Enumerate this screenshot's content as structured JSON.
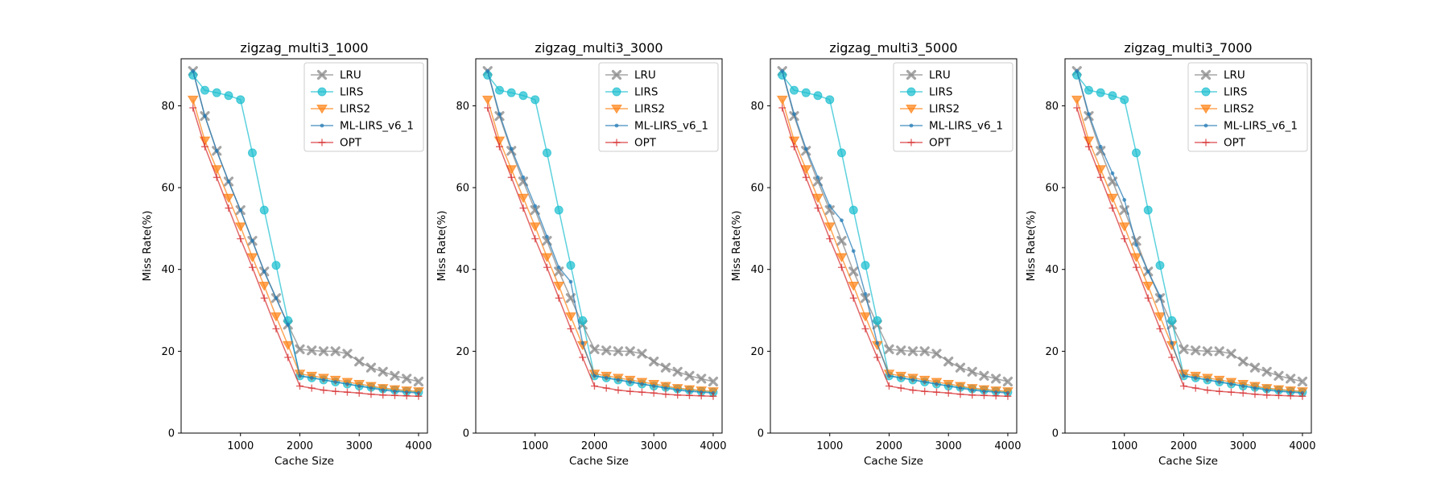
{
  "chart_data": [
    {
      "type": "line",
      "title": "zigzag_multi3_1000",
      "xlabel": "Cache Size",
      "ylabel": "Miss Rate(%)",
      "xlim": [
        0,
        4150
      ],
      "ylim": [
        0,
        91.5
      ],
      "xticks": [
        1000,
        2000,
        3000,
        4000
      ],
      "yticks": [
        0,
        20,
        40,
        60,
        80
      ],
      "legend": "top-right",
      "x": [
        200,
        400,
        600,
        800,
        1000,
        1200,
        1400,
        1600,
        1800,
        2000,
        2200,
        2400,
        2600,
        2800,
        3000,
        3200,
        3400,
        3600,
        3800,
        4000
      ],
      "series": [
        {
          "name": "LRU",
          "color": "#7f7f7f",
          "marker": "x",
          "values": [
            88.5,
            77.5,
            69,
            61.5,
            54.5,
            47,
            39.5,
            33,
            26.5,
            20.5,
            20.2,
            20,
            20,
            19.4,
            17.5,
            16,
            15,
            14,
            13.3,
            12.6
          ]
        },
        {
          "name": "LIRS",
          "color": "#17becf",
          "marker": "o",
          "values": [
            87.5,
            83.8,
            83.2,
            82.5,
            81.5,
            68.5,
            54.5,
            41,
            27.5,
            14,
            13.5,
            13,
            12.5,
            12,
            11.5,
            11.2,
            10.8,
            10.5,
            10.2,
            10
          ]
        },
        {
          "name": "LIRS2",
          "color": "#ff7f0e",
          "marker": "v",
          "values": [
            81.5,
            71.5,
            64.5,
            57.5,
            50.5,
            43,
            36,
            28.5,
            21.5,
            14.5,
            14,
            13.5,
            13,
            12.5,
            12,
            11.5,
            11,
            10.7,
            10.4,
            10.2
          ]
        },
        {
          "name": "ML-LIRS_v6_1",
          "color": "#1f77b4",
          "marker": ".",
          "values": [
            88.5,
            77.5,
            69,
            61.5,
            54.5,
            47,
            39.5,
            33,
            26.5,
            14,
            13.5,
            13,
            12.5,
            12,
            11.5,
            11,
            10.5,
            10.2,
            10,
            9.8
          ]
        },
        {
          "name": "OPT",
          "color": "#d62728",
          "marker": "+",
          "values": [
            79.5,
            70,
            62.5,
            55,
            47.5,
            40.5,
            33,
            25.5,
            18.5,
            11.5,
            11,
            10.5,
            10.2,
            10,
            9.8,
            9.5,
            9.3,
            9.2,
            9.1,
            9
          ]
        }
      ]
    },
    {
      "type": "line",
      "title": "zigzag_multi3_3000",
      "xlabel": "Cache Size",
      "ylabel": "Miss Rate(%)",
      "xlim": [
        0,
        4150
      ],
      "ylim": [
        0,
        91.5
      ],
      "xticks": [
        1000,
        2000,
        3000,
        4000
      ],
      "yticks": [
        0,
        20,
        40,
        60,
        80
      ],
      "legend": "top-right",
      "x": [
        200,
        400,
        600,
        800,
        1000,
        1200,
        1400,
        1600,
        1800,
        2000,
        2200,
        2400,
        2600,
        2800,
        3000,
        3200,
        3400,
        3600,
        3800,
        4000
      ],
      "series": [
        {
          "name": "LRU",
          "color": "#7f7f7f",
          "marker": "x",
          "values": [
            88.5,
            77.5,
            69,
            61.5,
            54.5,
            47,
            39.5,
            33,
            26.5,
            20.5,
            20.2,
            20,
            20,
            19.4,
            17.5,
            16,
            15,
            14,
            13.3,
            12.6
          ]
        },
        {
          "name": "LIRS",
          "color": "#17becf",
          "marker": "o",
          "values": [
            87.5,
            83.8,
            83.2,
            82.5,
            81.5,
            68.5,
            54.5,
            41,
            27.5,
            14,
            13.5,
            13,
            12.5,
            12,
            11.5,
            11.2,
            10.8,
            10.5,
            10.2,
            10
          ]
        },
        {
          "name": "LIRS2",
          "color": "#ff7f0e",
          "marker": "v",
          "values": [
            81.5,
            71.5,
            64.5,
            57.5,
            50.5,
            43,
            36,
            28.5,
            21.5,
            14.5,
            14,
            13.5,
            13,
            12.5,
            12,
            11.5,
            11,
            10.7,
            10.4,
            10.2
          ]
        },
        {
          "name": "ML-LIRS_v6_1",
          "color": "#1f77b4",
          "marker": ".",
          "values": [
            88.5,
            78,
            69.5,
            62.5,
            55.5,
            48,
            40.5,
            37,
            22,
            14,
            13.5,
            13,
            12.5,
            12,
            11.5,
            11,
            10.5,
            10.2,
            10,
            9.8
          ]
        },
        {
          "name": "OPT",
          "color": "#d62728",
          "marker": "+",
          "values": [
            79.5,
            70,
            62.5,
            55,
            47.5,
            40.5,
            33,
            25.5,
            18.5,
            11.5,
            11,
            10.5,
            10.2,
            10,
            9.8,
            9.5,
            9.3,
            9.2,
            9.1,
            9
          ]
        }
      ]
    },
    {
      "type": "line",
      "title": "zigzag_multi3_5000",
      "xlabel": "Cache Size",
      "ylabel": "Miss Rate(%)",
      "xlim": [
        0,
        4150
      ],
      "ylim": [
        0,
        91.5
      ],
      "xticks": [
        1000,
        2000,
        3000,
        4000
      ],
      "yticks": [
        0,
        20,
        40,
        60,
        80
      ],
      "legend": "top-right",
      "x": [
        200,
        400,
        600,
        800,
        1000,
        1200,
        1400,
        1600,
        1800,
        2000,
        2200,
        2400,
        2600,
        2800,
        3000,
        3200,
        3400,
        3600,
        3800,
        4000
      ],
      "series": [
        {
          "name": "LRU",
          "color": "#7f7f7f",
          "marker": "x",
          "values": [
            88.5,
            77.5,
            69,
            61.5,
            54.5,
            47,
            39.5,
            33,
            26.5,
            20.5,
            20.2,
            20,
            20,
            19.4,
            17.5,
            16,
            15,
            14,
            13.3,
            12.6
          ]
        },
        {
          "name": "LIRS",
          "color": "#17becf",
          "marker": "o",
          "values": [
            87.5,
            83.8,
            83.2,
            82.5,
            81.5,
            68.5,
            54.5,
            41,
            27.5,
            14,
            13.5,
            13,
            12.5,
            12,
            11.5,
            11.2,
            10.8,
            10.5,
            10.2,
            10
          ]
        },
        {
          "name": "LIRS2",
          "color": "#ff7f0e",
          "marker": "v",
          "values": [
            81.5,
            71.5,
            64.5,
            57.5,
            50.5,
            43,
            36,
            28.5,
            21.5,
            14.5,
            14,
            13.5,
            13,
            12.5,
            12,
            11.5,
            11,
            10.7,
            10.4,
            10.2
          ]
        },
        {
          "name": "ML-LIRS_v6_1",
          "color": "#1f77b4",
          "marker": ".",
          "values": [
            88.5,
            78,
            69.5,
            62.5,
            55.5,
            52,
            44.5,
            34,
            22,
            14,
            13.5,
            13,
            12.5,
            12,
            11.5,
            11,
            10.5,
            10.2,
            10,
            9.8
          ]
        },
        {
          "name": "OPT",
          "color": "#d62728",
          "marker": "+",
          "values": [
            79.5,
            70,
            62.5,
            55,
            47.5,
            40.5,
            33,
            25.5,
            18.5,
            11.5,
            11,
            10.5,
            10.2,
            10,
            9.8,
            9.5,
            9.3,
            9.2,
            9.1,
            9
          ]
        }
      ]
    },
    {
      "type": "line",
      "title": "zigzag_multi3_7000",
      "xlabel": "Cache Size",
      "ylabel": "Miss Rate(%)",
      "xlim": [
        0,
        4150
      ],
      "ylim": [
        0,
        91.5
      ],
      "xticks": [
        1000,
        2000,
        3000,
        4000
      ],
      "yticks": [
        0,
        20,
        40,
        60,
        80
      ],
      "legend": "top-right",
      "x": [
        200,
        400,
        600,
        800,
        1000,
        1200,
        1400,
        1600,
        1800,
        2000,
        2200,
        2400,
        2600,
        2800,
        3000,
        3200,
        3400,
        3600,
        3800,
        4000
      ],
      "series": [
        {
          "name": "LRU",
          "color": "#7f7f7f",
          "marker": "x",
          "values": [
            88.5,
            77.5,
            69,
            61.5,
            54.5,
            47,
            39.5,
            33,
            26.5,
            20.5,
            20.2,
            20,
            20,
            19.4,
            17.5,
            16,
            15,
            14,
            13.3,
            12.6
          ]
        },
        {
          "name": "LIRS",
          "color": "#17becf",
          "marker": "o",
          "values": [
            87.5,
            83.8,
            83.2,
            82.5,
            81.5,
            68.5,
            54.5,
            41,
            27.5,
            14,
            13.5,
            13,
            12.5,
            12,
            11.5,
            11.2,
            10.8,
            10.5,
            10.2,
            10
          ]
        },
        {
          "name": "LIRS2",
          "color": "#ff7f0e",
          "marker": "v",
          "values": [
            81.5,
            71.5,
            64.5,
            57.5,
            50.5,
            43,
            36,
            28.5,
            21.5,
            14.5,
            14,
            13.5,
            13,
            12.5,
            12,
            11.5,
            11,
            10.7,
            10.4,
            10.2
          ]
        },
        {
          "name": "ML-LIRS_v6_1",
          "color": "#1f77b4",
          "marker": ".",
          "values": [
            88.5,
            78,
            70,
            63.5,
            57,
            46,
            39.5,
            33.5,
            22,
            14,
            13.5,
            13,
            12.5,
            12,
            11.5,
            11,
            10.5,
            10.2,
            10,
            9.8
          ]
        },
        {
          "name": "OPT",
          "color": "#d62728",
          "marker": "+",
          "values": [
            79.5,
            70,
            62.5,
            55,
            47.5,
            40.5,
            33,
            25.5,
            18.5,
            11.5,
            11,
            10.5,
            10.2,
            10,
            9.8,
            9.5,
            9.3,
            9.2,
            9.1,
            9
          ]
        }
      ]
    }
  ]
}
